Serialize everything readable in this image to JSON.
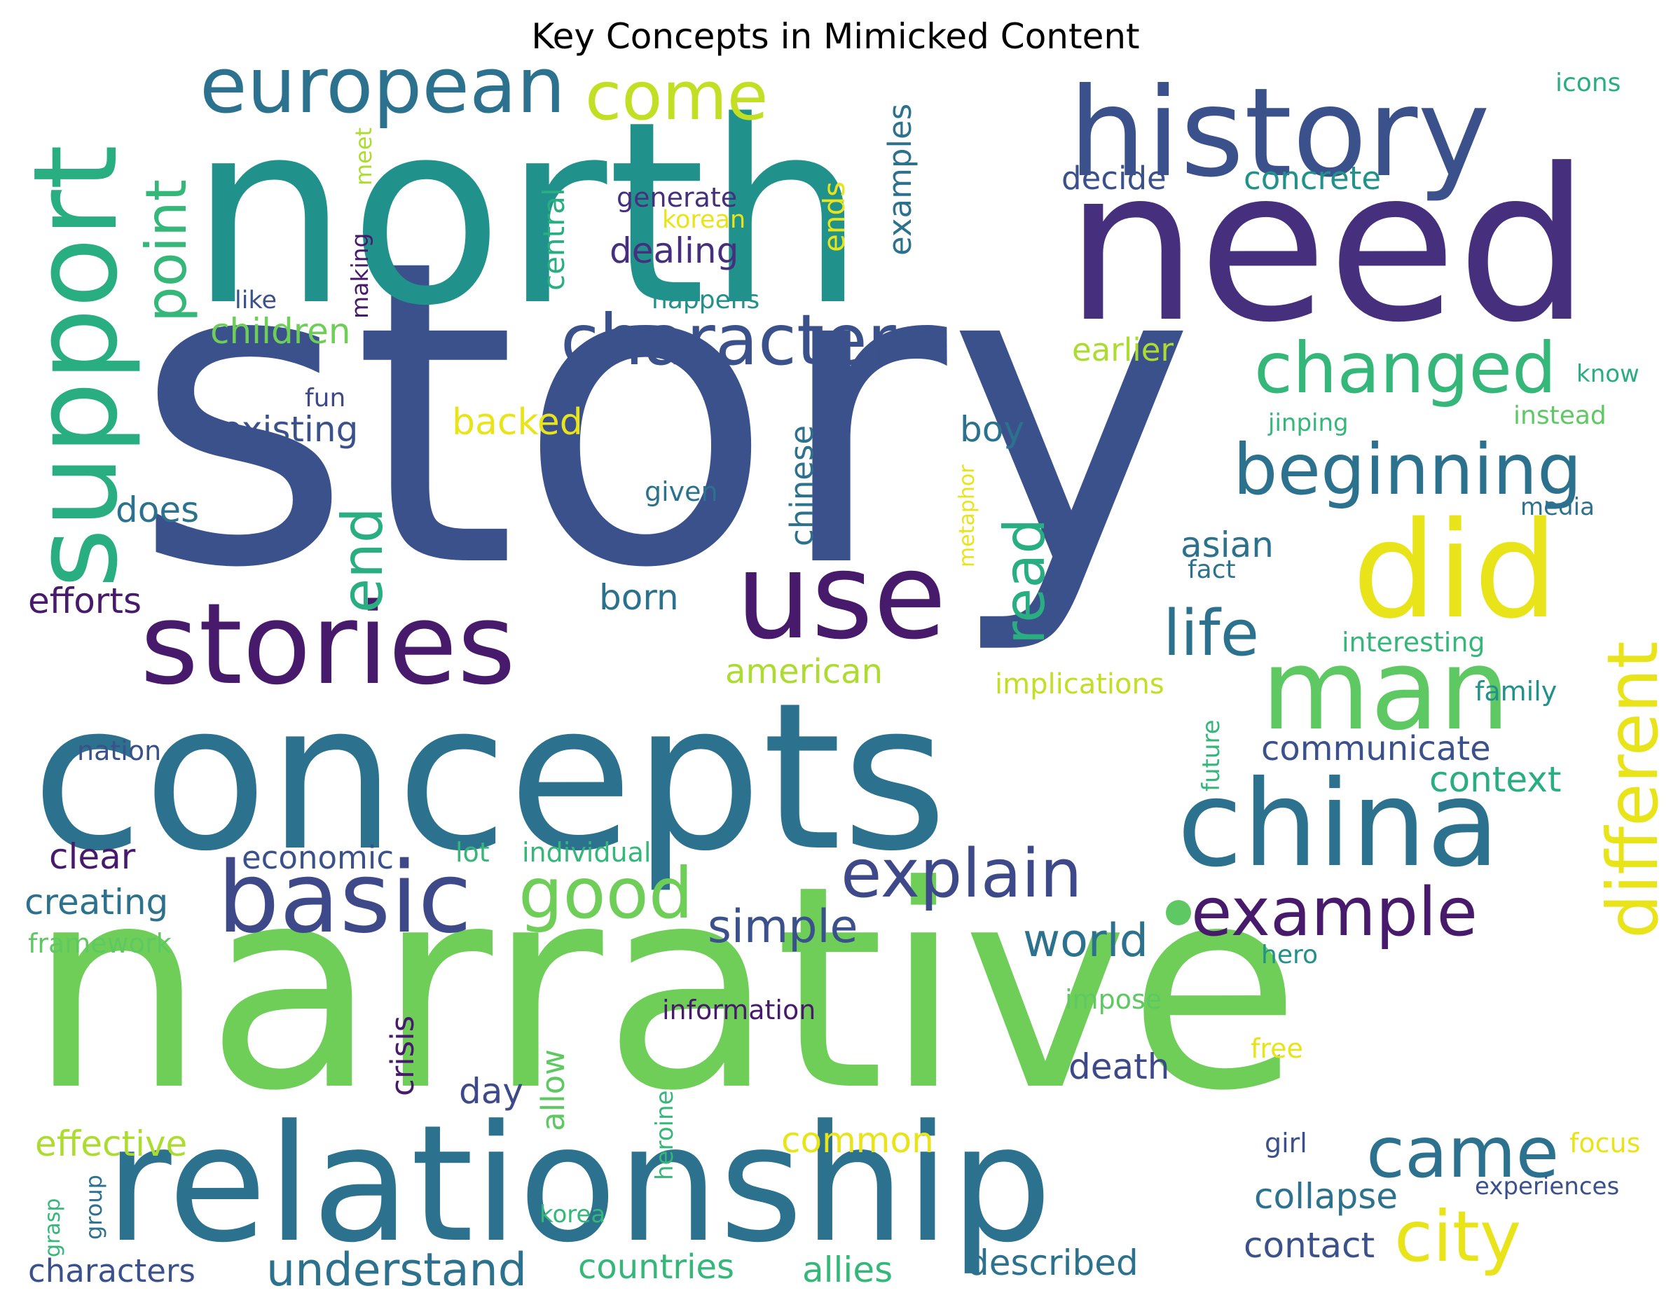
{
  "title": "Key Concepts in Mimicked Content",
  "palette": {
    "p1": "#46307e",
    "p2": "#3b518b",
    "p3": "#2c728e",
    "p4": "#21918c",
    "p5": "#28ae80",
    "p6": "#5ec962",
    "p7": "#addc30",
    "p8": "#e8e419",
    "p9": "#481a6c"
  },
  "words": [
    {
      "text": "story",
      "color": "#3b518b"
    },
    {
      "text": "narrative",
      "color": "#6ece58"
    },
    {
      "text": "north",
      "color": "#21918c"
    },
    {
      "text": "concepts",
      "color": "#2c728e"
    },
    {
      "text": "need",
      "color": "#46307e"
    },
    {
      "text": "relationship",
      "color": "#2c728e"
    },
    {
      "text": "history",
      "color": "#3b518b"
    },
    {
      "text": "stories",
      "color": "#481a6c"
    },
    {
      "text": "china",
      "color": "#2c728e"
    },
    {
      "text": "use",
      "color": "#481a6c"
    },
    {
      "text": "support",
      "color": "#28ae80"
    },
    {
      "text": "did",
      "color": "#e8e419"
    },
    {
      "text": "man",
      "color": "#5ec962"
    },
    {
      "text": "basic",
      "color": "#3e4989"
    },
    {
      "text": "european",
      "color": "#2c728e"
    },
    {
      "text": "character",
      "color": "#3b518b"
    },
    {
      "text": "changed",
      "color": "#35b779"
    },
    {
      "text": "beginning",
      "color": "#2c728e"
    },
    {
      "text": "explain",
      "color": "#3e4989"
    },
    {
      "text": "example",
      "color": "#481a6c"
    },
    {
      "text": "different",
      "color": "#e8e419"
    },
    {
      "text": "came",
      "color": "#2c728e"
    },
    {
      "text": "city",
      "color": "#e8e419"
    },
    {
      "text": "good",
      "color": "#6ece58"
    },
    {
      "text": "come",
      "color": "#c2df23"
    },
    {
      "text": "point",
      "color": "#35b779"
    },
    {
      "text": "end",
      "color": "#28ae80"
    },
    {
      "text": "read",
      "color": "#28ae80"
    },
    {
      "text": "life",
      "color": "#2c728e"
    },
    {
      "text": "simple",
      "color": "#3b518b"
    },
    {
      "text": "world",
      "color": "#2c728e"
    },
    {
      "text": "understand",
      "color": "#2c728e"
    },
    {
      "text": "decide",
      "color": "#3b518b"
    },
    {
      "text": "concrete",
      "color": "#21918c"
    },
    {
      "text": "generate",
      "color": "#46307e"
    },
    {
      "text": "korean",
      "color": "#e8e419"
    },
    {
      "text": "dealing",
      "color": "#46307e"
    },
    {
      "text": "examples",
      "color": "#2c728e"
    },
    {
      "text": "central",
      "color": "#28ae80"
    },
    {
      "text": "ends",
      "color": "#e8e419"
    },
    {
      "text": "meet",
      "color": "#addc30"
    },
    {
      "text": "making",
      "color": "#481a6c"
    },
    {
      "text": "like",
      "color": "#3b518b"
    },
    {
      "text": "happens",
      "color": "#21918c"
    },
    {
      "text": "children",
      "color": "#6ece58"
    },
    {
      "text": "earlier",
      "color": "#addc30"
    },
    {
      "text": "icons",
      "color": "#28ae80"
    },
    {
      "text": "know",
      "color": "#28ae80"
    },
    {
      "text": "instead",
      "color": "#5ec962"
    },
    {
      "text": "jinping",
      "color": "#35b779"
    },
    {
      "text": "fun",
      "color": "#3e4989"
    },
    {
      "text": "existing",
      "color": "#3b518b"
    },
    {
      "text": "backed",
      "color": "#e8e419"
    },
    {
      "text": "boy",
      "color": "#2c728e"
    },
    {
      "text": "chinese",
      "color": "#2c728e"
    },
    {
      "text": "given",
      "color": "#2c728e"
    },
    {
      "text": "metaphor",
      "color": "#e8e419"
    },
    {
      "text": "media",
      "color": "#2c728e"
    },
    {
      "text": "does",
      "color": "#2c728e"
    },
    {
      "text": "asian",
      "color": "#2c728e"
    },
    {
      "text": "fact",
      "color": "#2c728e"
    },
    {
      "text": "efforts",
      "color": "#481a6c"
    },
    {
      "text": "born",
      "color": "#2c728e"
    },
    {
      "text": "interesting",
      "color": "#35b779"
    },
    {
      "text": "american",
      "color": "#addc30"
    },
    {
      "text": "implications",
      "color": "#c2df23"
    },
    {
      "text": "family",
      "color": "#21918c"
    },
    {
      "text": "future",
      "color": "#35b779"
    },
    {
      "text": "nation",
      "color": "#3b518b"
    },
    {
      "text": "communicate",
      "color": "#3b518b"
    },
    {
      "text": "context",
      "color": "#28ae80"
    },
    {
      "text": "clear",
      "color": "#481a6c"
    },
    {
      "text": "economic",
      "color": "#3b518b"
    },
    {
      "text": "lot",
      "color": "#35b779"
    },
    {
      "text": "individual",
      "color": "#35b779"
    },
    {
      "text": "creating",
      "color": "#2c728e"
    },
    {
      "text": "framework",
      "color": "#5ec962"
    },
    {
      "text": "hero",
      "color": "#21918c"
    },
    {
      "text": "information",
      "color": "#481a6c"
    },
    {
      "text": "impose",
      "color": "#5ec962"
    },
    {
      "text": "crisis",
      "color": "#481a6c"
    },
    {
      "text": "allow",
      "color": "#5ec962"
    },
    {
      "text": "death",
      "color": "#3e4989"
    },
    {
      "text": "free",
      "color": "#e8e419"
    },
    {
      "text": "day",
      "color": "#3e4989"
    },
    {
      "text": "effective",
      "color": "#addc30"
    },
    {
      "text": "common",
      "color": "#e8e419"
    },
    {
      "text": "heroine",
      "color": "#35b779"
    },
    {
      "text": "girl",
      "color": "#3b518b"
    },
    {
      "text": "focus",
      "color": "#e8e419"
    },
    {
      "text": "experiences",
      "color": "#3b518b"
    },
    {
      "text": "collapse",
      "color": "#2c728e"
    },
    {
      "text": "grasp",
      "color": "#35b779"
    },
    {
      "text": "group",
      "color": "#2c728e"
    },
    {
      "text": "korea",
      "color": "#35b779"
    },
    {
      "text": "characters",
      "color": "#3b518b"
    },
    {
      "text": "countries",
      "color": "#35b779"
    },
    {
      "text": "allies",
      "color": "#35b779"
    },
    {
      "text": "described",
      "color": "#2c728e"
    },
    {
      "text": "contact",
      "color": "#3b518b"
    }
  ]
}
